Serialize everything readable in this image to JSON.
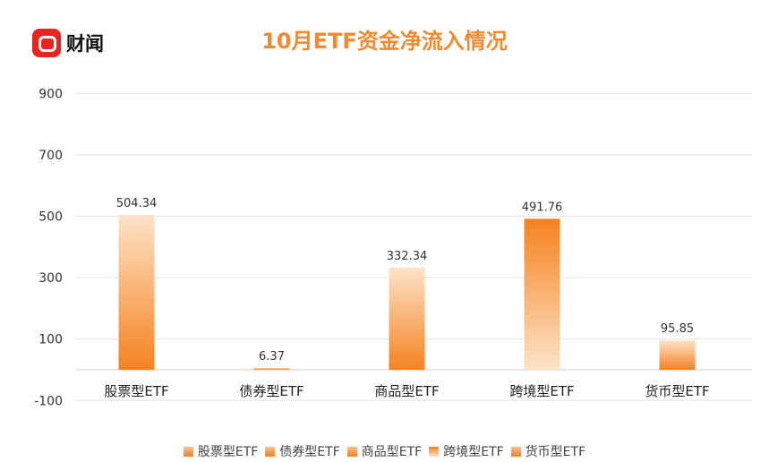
{
  "logo": {
    "text": "财闻"
  },
  "chart_data": {
    "type": "bar",
    "title": "10月ETF资金净流入情况",
    "categories": [
      "股票型ETF",
      "债券型ETF",
      "商品型ETF",
      "跨境型ETF",
      "货币型ETF"
    ],
    "values": [
      504.34,
      6.37,
      332.34,
      491.76,
      95.85
    ],
    "value_labels": [
      "504.34",
      "6.37",
      "332.34",
      "491.76",
      "95.85"
    ],
    "yticks": [
      900,
      700,
      500,
      300,
      100,
      -100
    ],
    "ylim": [
      -100,
      900
    ],
    "grid": true,
    "legend": "bottom",
    "colors": {
      "bar": "#f58220",
      "bar_light": "#fde3c8",
      "title": "#f08a30"
    }
  }
}
